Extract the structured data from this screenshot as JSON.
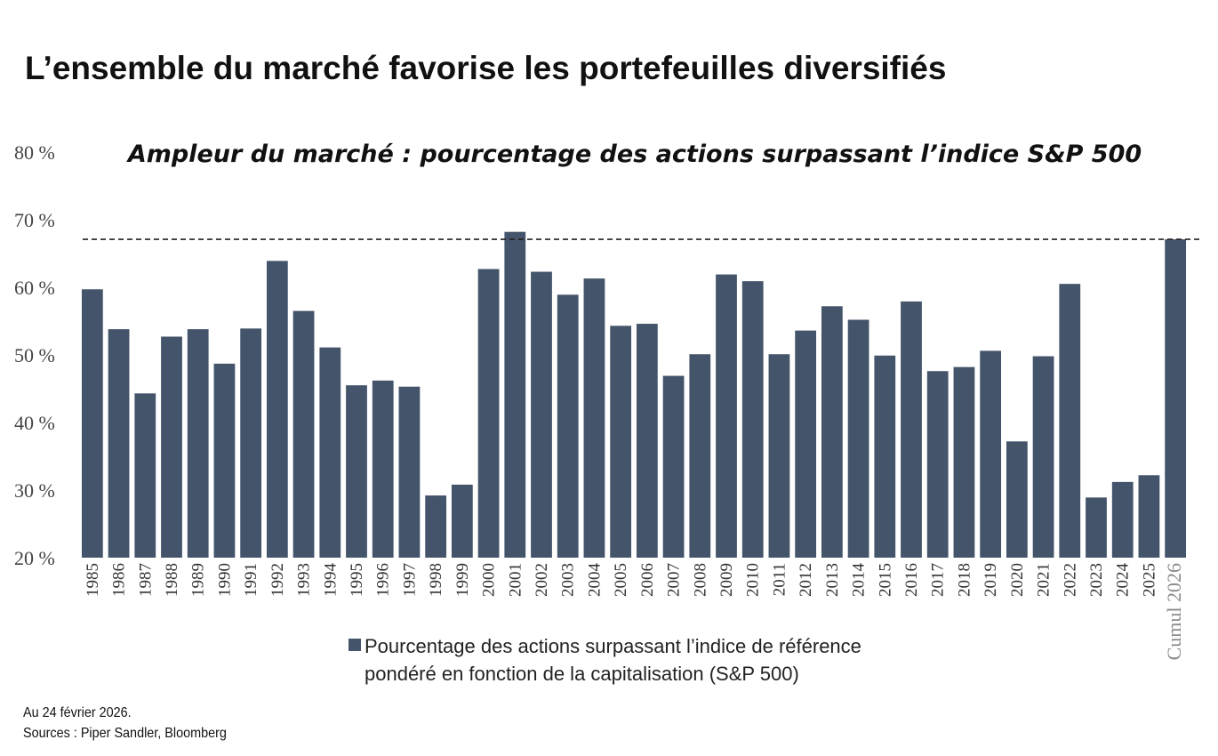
{
  "title": "L’ensemble du marché favorise les portefeuilles diversifiés",
  "chart_data": {
    "type": "bar",
    "title": "Ampleur du marché : pourcentage des actions surpassant l’indice S&P 500",
    "categories": [
      "1985",
      "1986",
      "1987",
      "1988",
      "1989",
      "1990",
      "1991",
      "1992",
      "1993",
      "1994",
      "1995",
      "1996",
      "1997",
      "1998",
      "1999",
      "2000",
      "2001",
      "2002",
      "2003",
      "2004",
      "2005",
      "2006",
      "2007",
      "2008",
      "2009",
      "2010",
      "2011",
      "2012",
      "2013",
      "2014",
      "2015",
      "2016",
      "2017",
      "2018",
      "2019",
      "2020",
      "2021",
      "2022",
      "2023",
      "2024",
      "2025",
      "Cumul 2026"
    ],
    "values": [
      59.7,
      53.8,
      44.3,
      52.7,
      53.8,
      48.7,
      53.9,
      63.9,
      56.5,
      51.1,
      45.5,
      46.2,
      45.3,
      29.2,
      30.8,
      62.7,
      68.2,
      62.3,
      58.9,
      61.3,
      54.3,
      54.6,
      46.9,
      50.1,
      61.9,
      60.9,
      50.1,
      53.6,
      57.2,
      55.2,
      49.9,
      57.9,
      47.6,
      48.2,
      50.6,
      37.2,
      49.8,
      60.5,
      28.9,
      31.2,
      32.2,
      67.1
    ],
    "series_name": "Pourcentage des actions surpassant l’indice de référence pondéré en fonction de la capitalisation (S&P 500)",
    "yticks": [
      "20 %",
      "30 %",
      "40 %",
      "50 %",
      "60 %",
      "70 %",
      "80 %"
    ],
    "ytick_values": [
      20,
      30,
      40,
      50,
      60,
      70,
      80
    ],
    "ylim": [
      20,
      80
    ],
    "reference_line": 67.1,
    "bar_color": "#44546a",
    "grid": false,
    "legend_position": "bottom-center"
  },
  "legend": {
    "line1": "Pourcentage des actions surpassant l’indice de référence",
    "line2": "pondéré en fonction de la capitalisation (S&P 500)"
  },
  "footer": {
    "date": "Au 24 février 2026.",
    "sources": "Sources : Piper Sandler, Bloomberg"
  }
}
